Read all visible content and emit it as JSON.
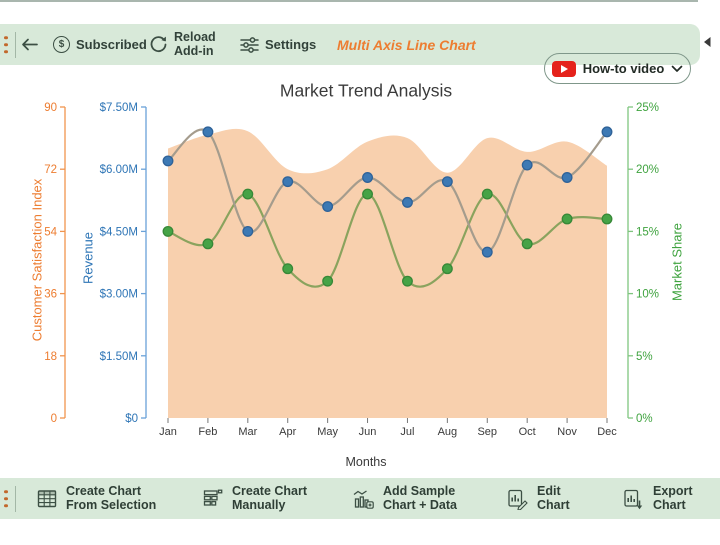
{
  "top_toolbar": {
    "subscribed_icon_char": "$",
    "subscribed_label": "Subscribed",
    "reload_line1": "Reload",
    "reload_line2": "Add-in",
    "settings_label": "Settings",
    "addin_title": "Multi Axis Line Chart",
    "howto_label": "How-to video"
  },
  "bottom_toolbar": {
    "items": [
      {
        "line1": "Create Chart",
        "line2": "From Selection",
        "icon": "table-grid-icon"
      },
      {
        "line1": "Create Chart",
        "line2": "Manually",
        "icon": "table-build-icon"
      },
      {
        "line1": "Add Sample",
        "line2": "Chart + Data",
        "icon": "sample-chart-icon"
      },
      {
        "line1": "Edit",
        "line2": "Chart",
        "icon": "edit-chart-icon"
      },
      {
        "line1": "Export",
        "line2": "Chart",
        "icon": "export-chart-icon"
      }
    ]
  },
  "chart_data": {
    "type": "line",
    "title": "Market Trend Analysis",
    "xlabel": "Months",
    "legend": "none",
    "grid": "off",
    "categories": [
      "Jan",
      "Feb",
      "Mar",
      "Apr",
      "May",
      "Jun",
      "Jul",
      "Aug",
      "Sep",
      "Oct",
      "Nov",
      "Dec"
    ],
    "series": [
      {
        "name": "Customer Satisfaction Index",
        "type": "area",
        "axis": "csi",
        "color": "#f8d0ae",
        "values": [
          78,
          82,
          83,
          72,
          72,
          80,
          81,
          71,
          81,
          77,
          80,
          73
        ]
      },
      {
        "name": "Market Share",
        "type": "line",
        "axis": "market_share",
        "color": "#46a346",
        "line_color": "#8aa35e",
        "marker_stroke": "#378837",
        "values": [
          15,
          14,
          18,
          12,
          11,
          18,
          11,
          12,
          18,
          14,
          16,
          16
        ]
      },
      {
        "name": "Revenue",
        "type": "line",
        "axis": "revenue",
        "color": "#3d79b4",
        "line_color": "#a59c8d",
        "marker_stroke": "#2f6298",
        "values": [
          6.2,
          6.9,
          4.5,
          5.7,
          5.1,
          5.8,
          5.2,
          5.7,
          4.0,
          6.1,
          5.8,
          6.9
        ]
      }
    ],
    "axes": {
      "csi": {
        "title": "Customer Satisfaction Index",
        "color": "#ed7d31",
        "line_color": "#f0944e",
        "ticks": [
          "0",
          "18",
          "36",
          "54",
          "72",
          "90"
        ],
        "range": [
          0,
          90
        ]
      },
      "revenue": {
        "title": "Revenue",
        "color": "#2e75b6",
        "line_color": "#6aa2d8",
        "ticks": [
          "$0",
          "$1.50M",
          "$3.00M",
          "$4.50M",
          "$6.00M",
          "$7.50M"
        ],
        "range": [
          0,
          7.5
        ]
      },
      "market_share": {
        "title": "Market Share",
        "color": "#3fa33f",
        "line_color": "#7fc57f",
        "ticks": [
          "0%",
          "5%",
          "10%",
          "15%",
          "20%",
          "25%"
        ],
        "range": [
          0,
          25
        ]
      }
    }
  }
}
